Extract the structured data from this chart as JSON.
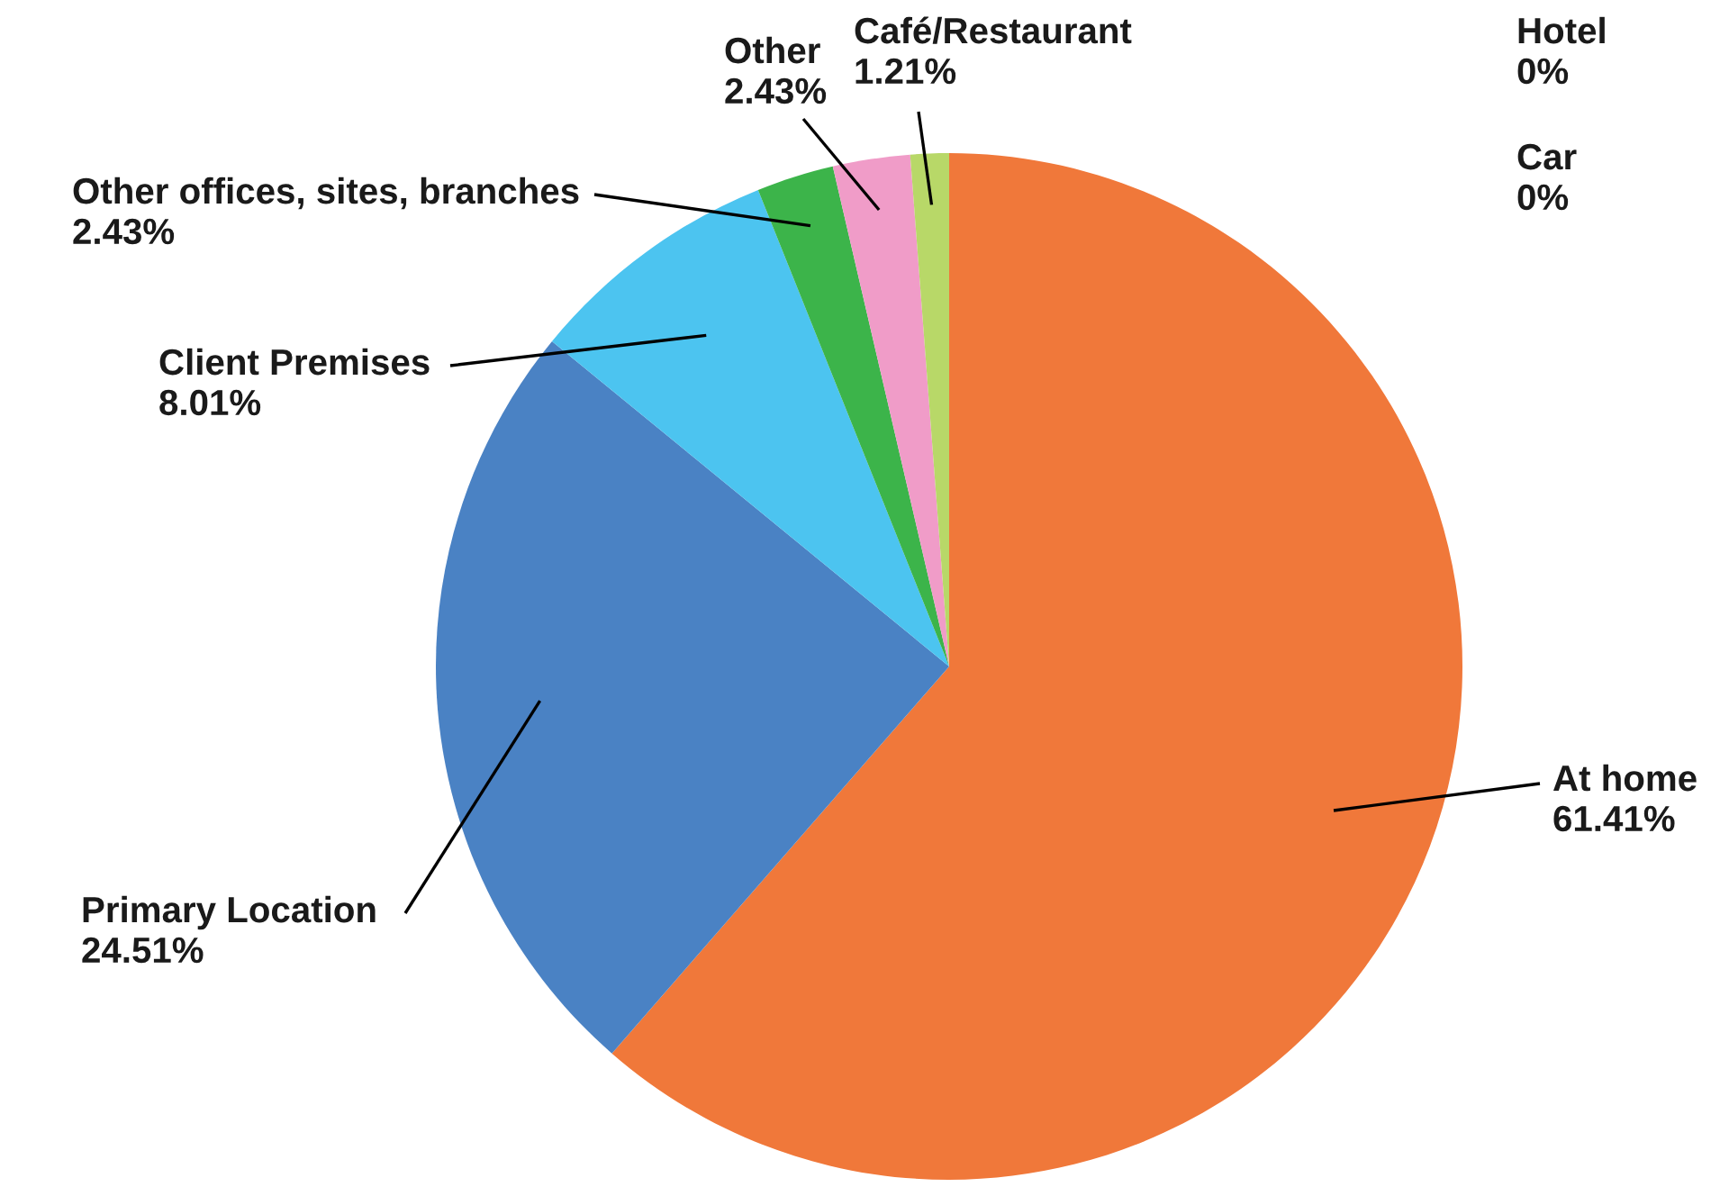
{
  "chart_data": {
    "type": "pie",
    "categories": [
      "At home",
      "Primary Location",
      "Client Premises",
      "Other offices, sites, branches",
      "Other",
      "Café/Restaurant",
      "Hotel",
      "Car"
    ],
    "values": [
      61.41,
      24.51,
      8.01,
      2.43,
      2.43,
      1.21,
      0,
      0
    ],
    "value_labels": [
      "61.41%",
      "24.51%",
      "8.01%",
      "2.43%",
      "2.43%",
      "1.21%",
      "0%",
      "0%"
    ],
    "colors": [
      "#f0783a",
      "#4a82c4",
      "#4cc4f0",
      "#3cb44a",
      "#f09cc8",
      "#b8d868",
      "#999999",
      "#777777"
    ],
    "legend": false
  }
}
